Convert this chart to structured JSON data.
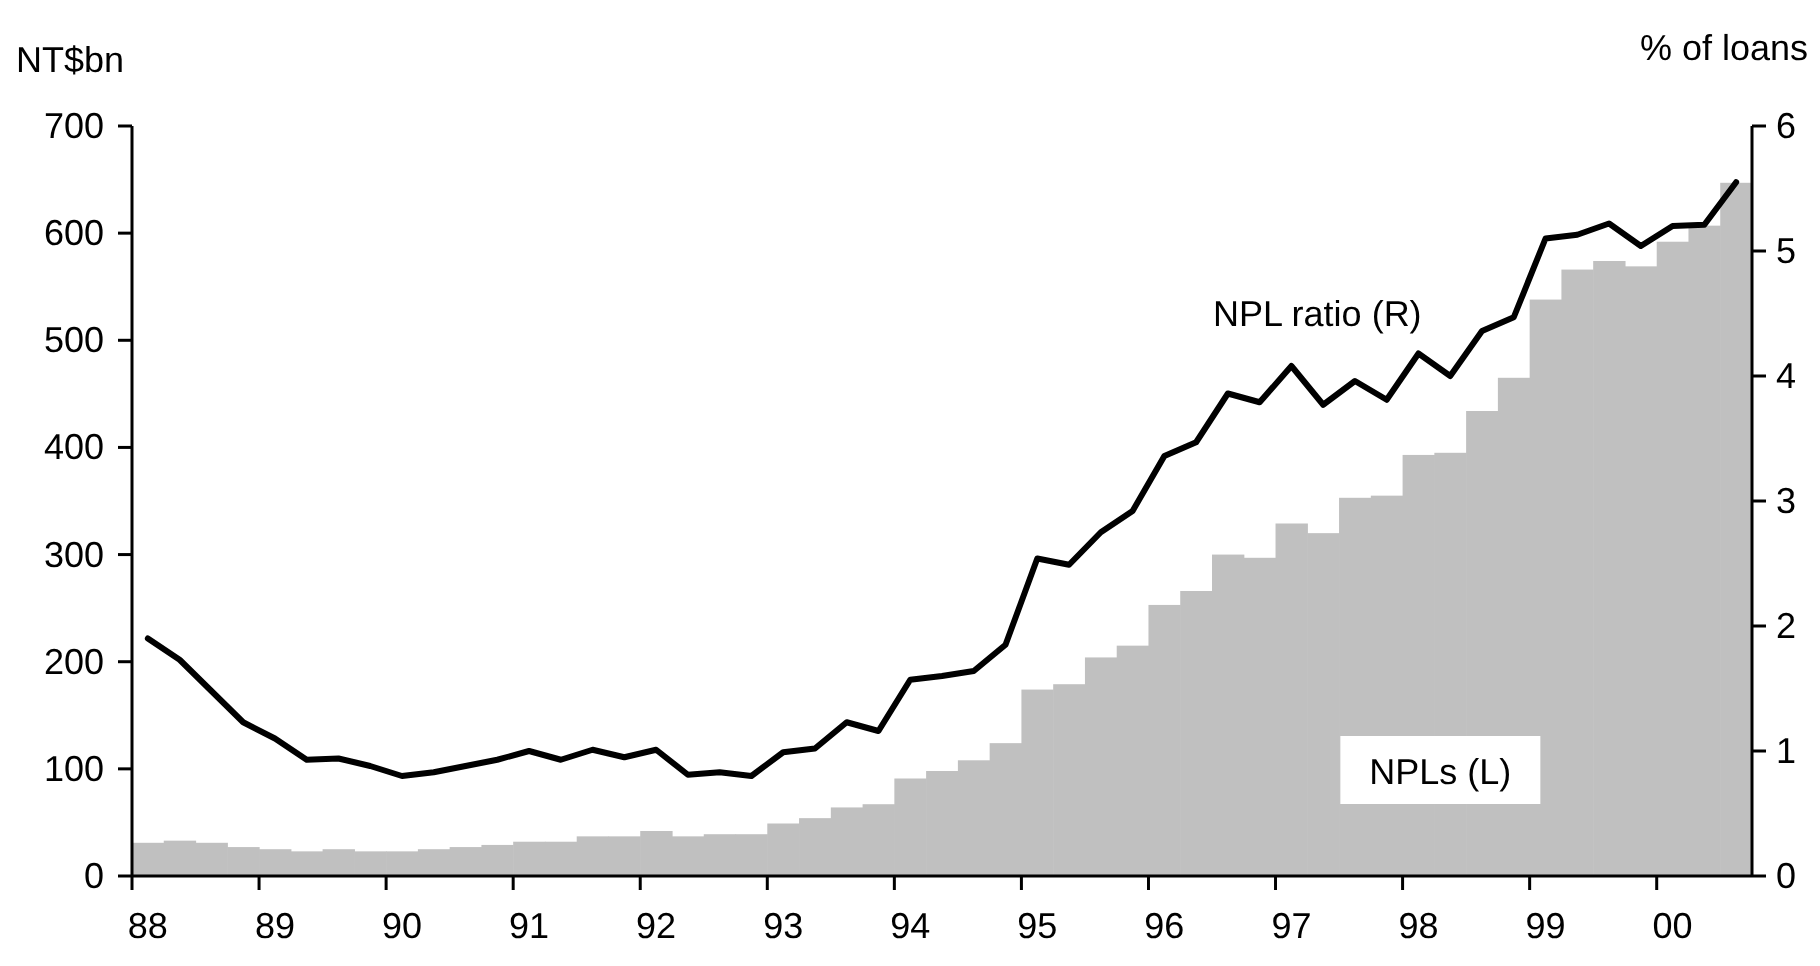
{
  "chart_data": {
    "type": "bar",
    "ylabel": "NT$bn",
    "y2label": "% of loans",
    "categories": [
      "88",
      null,
      null,
      null,
      "89",
      null,
      null,
      null,
      "90",
      null,
      null,
      null,
      "91",
      null,
      null,
      null,
      "92",
      null,
      null,
      null,
      "93",
      null,
      null,
      null,
      "94",
      null,
      null,
      null,
      "95",
      null,
      null,
      null,
      "96",
      null,
      null,
      null,
      "97",
      null,
      null,
      null,
      "98",
      null,
      null,
      null,
      "99",
      null,
      null,
      null,
      "00",
      null,
      null
    ],
    "series": [
      {
        "name": "NPLs (L)",
        "color": "#c0c0c0",
        "values": [
          31,
          33,
          31,
          27,
          25,
          23,
          25,
          23,
          23,
          25,
          27,
          29,
          32,
          32,
          37,
          37,
          42,
          37,
          39,
          39,
          49,
          54,
          64,
          67,
          91,
          98,
          108,
          124,
          174,
          179,
          204,
          215,
          253,
          266,
          300,
          297,
          329,
          320,
          353,
          355,
          393,
          395,
          434,
          465,
          538,
          566,
          574,
          569,
          592,
          607,
          647
        ]
      },
      {
        "name": "NPL ratio (R)",
        "type": "line",
        "axis": "y2",
        "color": "#000000",
        "values": [
          1.9,
          1.73,
          1.48,
          1.23,
          1.1,
          0.93,
          0.94,
          0.88,
          0.8,
          0.83,
          0.88,
          0.93,
          1.0,
          0.93,
          1.01,
          0.95,
          1.01,
          0.81,
          0.83,
          0.8,
          0.99,
          1.02,
          1.23,
          1.16,
          1.57,
          1.6,
          1.64,
          1.85,
          2.54,
          2.49,
          2.75,
          2.92,
          3.36,
          3.47,
          3.86,
          3.79,
          4.08,
          3.77,
          3.96,
          3.81,
          4.18,
          4.0,
          4.36,
          4.47,
          5.1,
          5.13,
          5.22,
          5.04,
          5.2,
          5.21,
          5.55
        ]
      }
    ],
    "ylim": [
      0,
      700
    ],
    "yticks": [
      0,
      100,
      200,
      300,
      400,
      500,
      600,
      700
    ],
    "y2lim": [
      0,
      6
    ],
    "y2ticks": [
      0,
      1,
      2,
      3,
      4,
      5,
      6
    ],
    "grid": false,
    "legend": false,
    "marker": "none",
    "line_style": "solid"
  }
}
